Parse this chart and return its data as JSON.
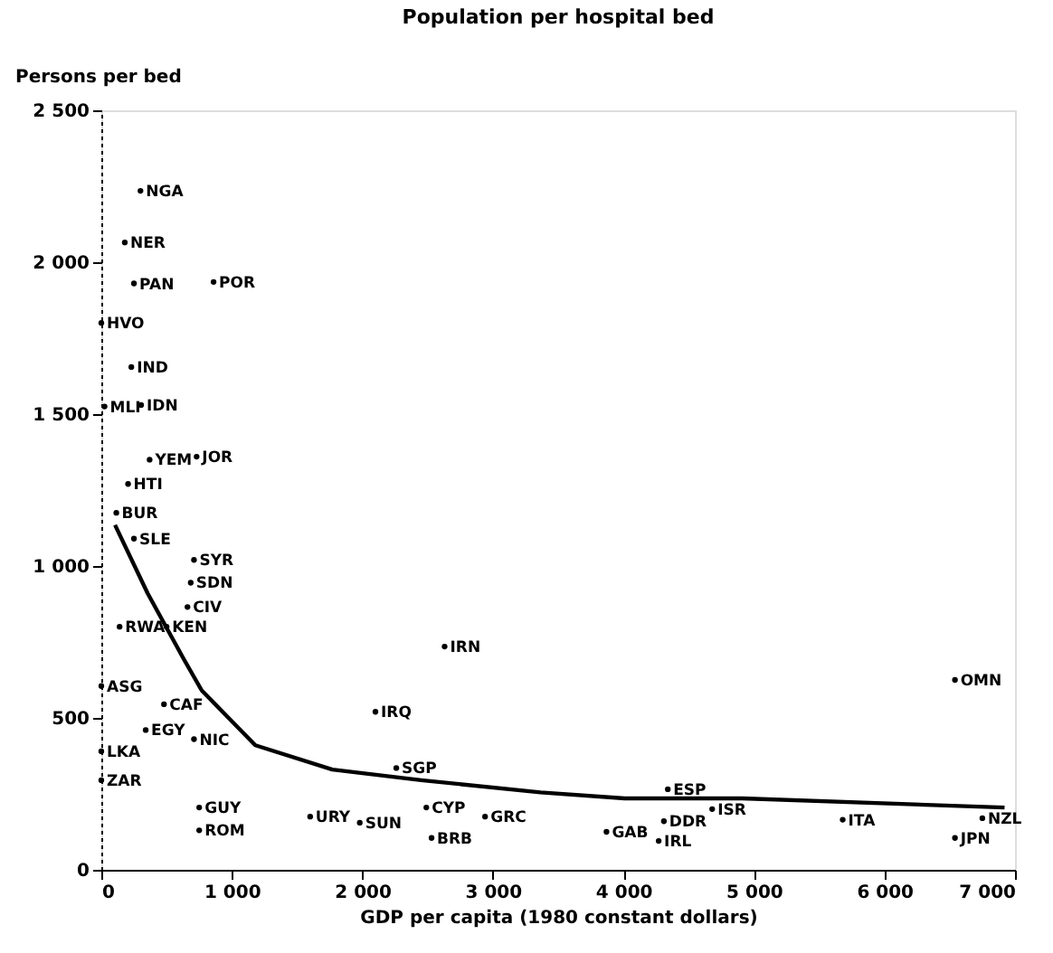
{
  "chart_data": {
    "type": "scatter",
    "title": "Population per hospital bed",
    "xlabel": "GDP per capita (1980 constant dollars)",
    "ylabel": "Persons per bed",
    "xlim": [
      0,
      7000
    ],
    "ylim": [
      0,
      2500
    ],
    "xticks": [
      0,
      {
        "value": 1000,
        "label": "1 000"
      },
      {
        "value": 2000,
        "label": "2 000"
      },
      {
        "value": 3000,
        "label": "3 000"
      },
      {
        "value": 4000,
        "label": "4 000"
      },
      {
        "value": 5000,
        "label": "5 000"
      },
      {
        "value": 6000,
        "label": "6 000"
      },
      {
        "value": 7000,
        "label": "7 000"
      }
    ],
    "yticks": [
      0,
      500,
      {
        "value": 1000,
        "label": "1 000"
      },
      {
        "value": 1500,
        "label": "1 500"
      },
      {
        "value": 2000,
        "label": "2 000"
      },
      {
        "value": 2500,
        "label": "2 500"
      }
    ],
    "grid": false,
    "series": [
      {
        "marker": "circle",
        "color": "#000000",
        "x": [
          300,
          180,
          250,
          860,
          0,
          230,
          25,
          305,
          370,
          730,
          205,
          115,
          250,
          710,
          685,
          660,
          140,
          500,
          0,
          480,
          340,
          710,
          0,
          0,
          750,
          750,
          1600,
          1980,
          2490,
          2530,
          2940,
          2630,
          2100,
          2260,
          6540,
          4340,
          4680,
          4310,
          4270,
          3870,
          5680,
          6750,
          6540
        ],
        "values": [
          2235,
          2065,
          1930,
          1935,
          1800,
          1655,
          1525,
          1530,
          1350,
          1360,
          1270,
          1175,
          1090,
          1020,
          945,
          865,
          800,
          800,
          605,
          545,
          460,
          430,
          390,
          295,
          205,
          130,
          175,
          155,
          205,
          105,
          175,
          735,
          520,
          335,
          625,
          265,
          200,
          160,
          95,
          125,
          165,
          170,
          105
        ],
        "value_labels": [
          "NGA",
          "NER",
          "PAN",
          "POR",
          "HVO",
          "IND",
          "MLI",
          "IDN",
          "YEM",
          "JOR",
          "HTI",
          "BUR",
          "SLE",
          "SYR",
          "SDN",
          "CIV",
          "RWA",
          "KEN",
          "ASG",
          "CAF",
          "EGY",
          "NIC",
          "LKA",
          "ZAR",
          "GUY",
          "ROM",
          "URY",
          "SUN",
          "CYP",
          "BRB",
          "GRC",
          "IRN",
          "IRQ",
          "SGP",
          "OMN",
          "ESP",
          "ISR",
          "DDR",
          "IRL",
          "GAB",
          "ITA",
          "NZL",
          "JPN"
        ]
      },
      {
        "type": "line",
        "color": "#000000",
        "line_style": "solid",
        "x": [
          105,
          355,
          630,
          770,
          1180,
          1770,
          2450,
          3365,
          4010,
          4910,
          6920
        ],
        "values": [
          1135,
          910,
          695,
          590,
          410,
          330,
          295,
          255,
          235,
          235,
          205
        ]
      }
    ]
  }
}
